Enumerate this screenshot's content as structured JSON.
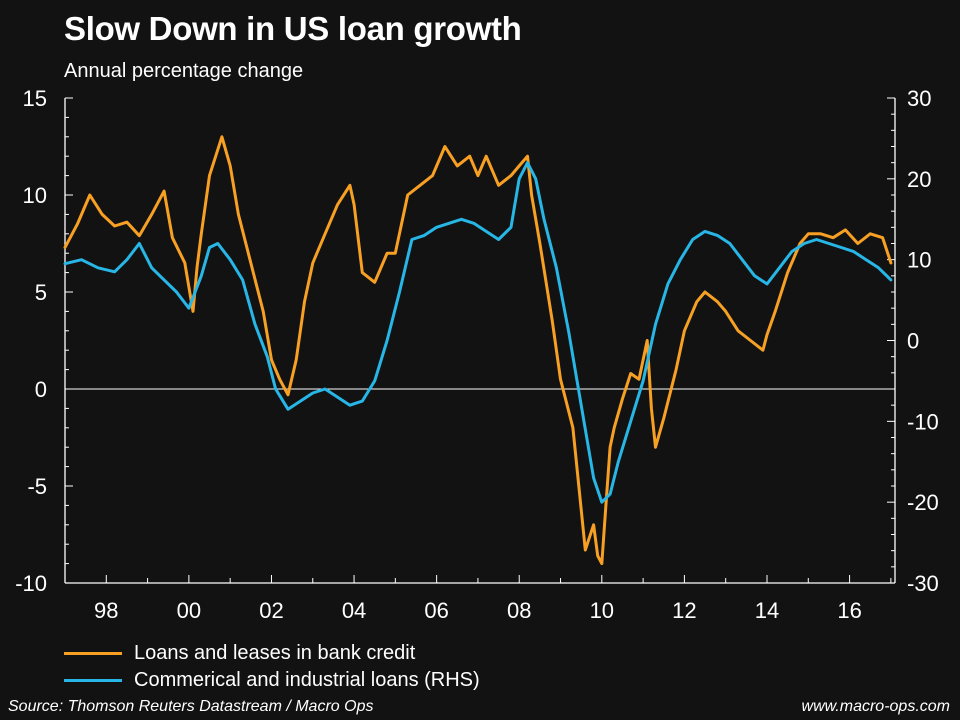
{
  "header": {
    "title": "Slow Down in US loan growth",
    "subtitle": "Annual percentage change"
  },
  "footer": {
    "source": "Source: Thomson Reuters Datastream / Macro Ops",
    "website": "www.macro-ops.com"
  },
  "chart_data": {
    "type": "line",
    "title": "Slow Down in US loan growth",
    "subtitle": "Annual percentage change",
    "x_ticks": [
      "98",
      "00",
      "02",
      "04",
      "06",
      "08",
      "10",
      "12",
      "14",
      "16"
    ],
    "x_range": [
      1997.0,
      2017.1
    ],
    "y_left": {
      "range": [
        -10,
        15
      ],
      "ticks": [
        15,
        10,
        5,
        0,
        -5,
        -10
      ]
    },
    "y_right": {
      "range": [
        -30,
        30
      ],
      "ticks": [
        30,
        20,
        10,
        0,
        -10,
        -20,
        -30
      ]
    },
    "zero_line": true,
    "grid": false,
    "legend_position": "bottom-left",
    "series": [
      {
        "name": "Loans and leases in bank credit",
        "axis": "left",
        "color": "#f7a023",
        "x": [
          1997.0,
          1997.3,
          1997.6,
          1997.9,
          1998.2,
          1998.5,
          1998.8,
          1999.1,
          1999.4,
          1999.6,
          1999.9,
          2000.1,
          2000.2,
          2000.3,
          2000.5,
          2000.8,
          2001.0,
          2001.2,
          2001.5,
          2001.8,
          2002.0,
          2002.2,
          2002.4,
          2002.6,
          2002.8,
          2003.0,
          2003.3,
          2003.6,
          2003.9,
          2004.0,
          2004.2,
          2004.5,
          2004.8,
          2005.0,
          2005.3,
          2005.6,
          2005.9,
          2006.2,
          2006.5,
          2006.8,
          2007.0,
          2007.2,
          2007.5,
          2007.8,
          2008.0,
          2008.2,
          2008.3,
          2008.5,
          2008.8,
          2009.0,
          2009.3,
          2009.6,
          2009.8,
          2009.9,
          2010.0,
          2010.1,
          2010.2,
          2010.3,
          2010.5,
          2010.7,
          2010.9,
          2011.1,
          2011.2,
          2011.3,
          2011.5,
          2011.8,
          2012.0,
          2012.3,
          2012.5,
          2012.8,
          2013.0,
          2013.3,
          2013.6,
          2013.9,
          2014.0,
          2014.2,
          2014.5,
          2014.8,
          2015.0,
          2015.3,
          2015.6,
          2015.9,
          2016.2,
          2016.5,
          2016.8,
          2017.0
        ],
        "values": [
          7.3,
          8.5,
          10.0,
          9.0,
          8.4,
          8.6,
          7.9,
          9.0,
          10.2,
          7.8,
          6.5,
          4.0,
          6.3,
          8.0,
          11.0,
          13.0,
          11.5,
          9.0,
          6.5,
          4.0,
          1.5,
          0.5,
          -0.3,
          1.5,
          4.5,
          6.5,
          8.0,
          9.5,
          10.5,
          9.5,
          6.0,
          5.5,
          7.0,
          7.0,
          10.0,
          10.5,
          11.0,
          12.5,
          11.5,
          12.0,
          11.0,
          12.0,
          10.5,
          11.0,
          11.5,
          12.0,
          10.0,
          7.5,
          3.5,
          0.5,
          -2.0,
          -8.3,
          -7.0,
          -8.6,
          -9.0,
          -6.0,
          -3.0,
          -2.0,
          -0.5,
          0.8,
          0.5,
          2.5,
          -1.0,
          -3.0,
          -1.5,
          1.0,
          3.0,
          4.5,
          5.0,
          4.5,
          4.0,
          3.0,
          2.5,
          2.0,
          2.8,
          4.0,
          6.0,
          7.5,
          8.0,
          8.0,
          7.8,
          8.2,
          7.5,
          8.0,
          7.8,
          6.5
        ]
      },
      {
        "name": "Commerical and industrial loans (RHS)",
        "axis": "right",
        "color": "#27b6e6",
        "x": [
          1997.0,
          1997.4,
          1997.8,
          1998.2,
          1998.5,
          1998.8,
          1999.1,
          1999.4,
          1999.7,
          2000.0,
          2000.3,
          2000.5,
          2000.7,
          2001.0,
          2001.3,
          2001.6,
          2001.9,
          2002.1,
          2002.4,
          2002.7,
          2003.0,
          2003.3,
          2003.6,
          2003.9,
          2004.2,
          2004.5,
          2004.8,
          2005.1,
          2005.4,
          2005.7,
          2006.0,
          2006.3,
          2006.6,
          2006.9,
          2007.2,
          2007.5,
          2007.8,
          2008.0,
          2008.2,
          2008.4,
          2008.6,
          2008.9,
          2009.2,
          2009.5,
          2009.8,
          2010.0,
          2010.2,
          2010.4,
          2010.7,
          2011.0,
          2011.3,
          2011.6,
          2011.9,
          2012.2,
          2012.5,
          2012.8,
          2013.1,
          2013.4,
          2013.7,
          2014.0,
          2014.3,
          2014.6,
          2014.9,
          2015.2,
          2015.5,
          2015.8,
          2016.1,
          2016.4,
          2016.7,
          2017.0
        ],
        "values": [
          9.5,
          10.0,
          9.0,
          8.5,
          10.0,
          12.0,
          9.0,
          7.5,
          6.0,
          4.0,
          8.0,
          11.5,
          12.0,
          10.0,
          7.5,
          2.0,
          -2.0,
          -6.0,
          -8.5,
          -7.5,
          -6.5,
          -6.0,
          -7.0,
          -8.0,
          -7.5,
          -5.0,
          0.0,
          6.0,
          12.5,
          13.0,
          14.0,
          14.5,
          15.0,
          14.5,
          13.5,
          12.5,
          14.0,
          20.0,
          22.0,
          20.0,
          15.0,
          9.0,
          1.0,
          -8.0,
          -17.0,
          -20.0,
          -19.0,
          -15.0,
          -10.0,
          -5.0,
          2.0,
          7.0,
          10.0,
          12.5,
          13.5,
          13.0,
          12.0,
          10.0,
          8.0,
          7.0,
          9.0,
          11.0,
          12.0,
          12.5,
          12.0,
          11.5,
          11.0,
          10.0,
          9.0,
          7.5
        ]
      }
    ]
  }
}
